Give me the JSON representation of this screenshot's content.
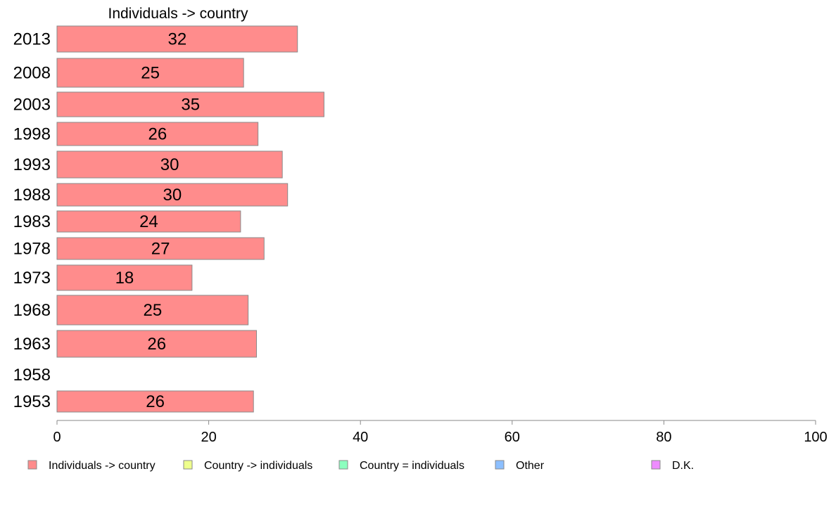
{
  "chart_data": {
    "type": "bar",
    "orientation": "horizontal",
    "title": "Individuals -> country",
    "xlabel": "",
    "ylabel": "",
    "categories": [
      "2013",
      "2008",
      "2003",
      "1998",
      "1993",
      "1988",
      "1983",
      "1978",
      "1973",
      "1968",
      "1963",
      "1958",
      "1953"
    ],
    "series": [
      {
        "name": "Individuals -> country",
        "values": [
          32,
          25,
          35,
          26,
          30,
          30,
          24,
          27,
          18,
          25,
          26,
          null,
          26
        ],
        "exact_values": [
          31.7,
          24.6,
          35.2,
          26.5,
          29.7,
          30.4,
          24.2,
          27.3,
          17.8,
          25.2,
          26.3,
          null,
          25.9
        ],
        "color": "#FF8C8C"
      }
    ],
    "xlim": [
      0,
      100
    ],
    "xticks": [
      "0",
      "20",
      "40",
      "60",
      "80",
      "100"
    ],
    "grid": false,
    "legend_position": "bottom",
    "legend": [
      {
        "label": "Individuals -> country",
        "color": "#FF8C8C"
      },
      {
        "label": "Country -> individuals",
        "color": "#EEFF8C"
      },
      {
        "label": "Country = individuals",
        "color": "#8CFFBF"
      },
      {
        "label": "Other",
        "color": "#8CBFFF"
      },
      {
        "label": "D.K.",
        "color": "#EE8CFF"
      }
    ]
  }
}
